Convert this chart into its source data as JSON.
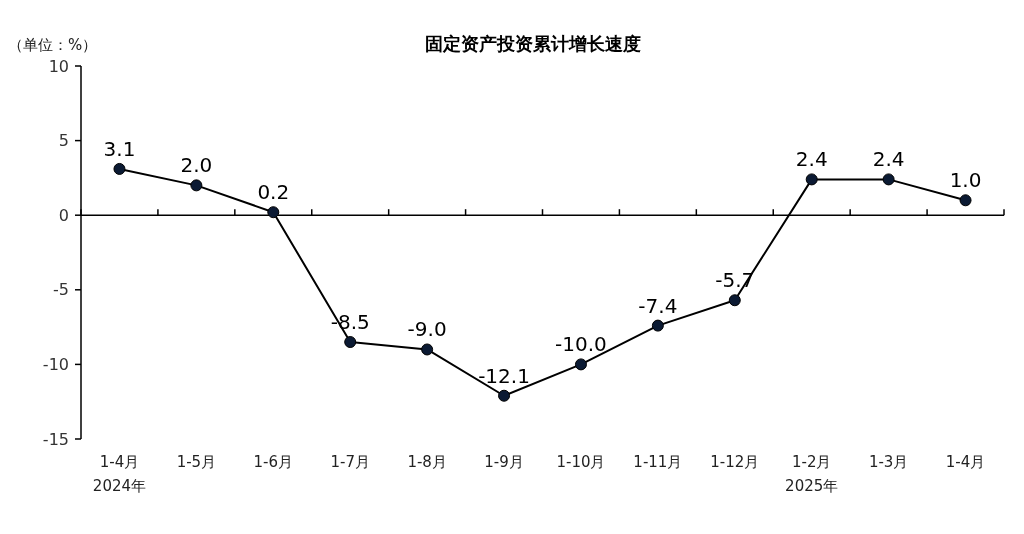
{
  "chart_data": {
    "type": "line",
    "title": "固定资产投资累计增长速度",
    "ylabel": "（单位：%）",
    "categories": [
      "1-4月\n2024年",
      "1-5月",
      "1-6月",
      "1-7月",
      "1-8月",
      "1-9月",
      "1-10月",
      "1-11月",
      "1-12月",
      "1-2月\n2025年",
      "1-3月",
      "1-4月"
    ],
    "series": [
      {
        "color": "#000000",
        "values": [
          3.1,
          2.0,
          0.2,
          -8.5,
          -9.0,
          -12.1,
          -10.0,
          -7.4,
          -5.7,
          2.4,
          2.4,
          1.0
        ],
        "value_labels": [
          "3.1",
          "2.0",
          "0.2",
          "-8.5",
          "-9.0",
          "-12.1",
          "-10.0",
          "-7.4",
          "-5.7",
          "2.4",
          "2.4",
          "1.0"
        ]
      }
    ],
    "ylim": [
      -15,
      10
    ],
    "yticks": [
      -15,
      -10,
      -5,
      0,
      5,
      10
    ],
    "marker": "circle",
    "line_style": "solid"
  }
}
